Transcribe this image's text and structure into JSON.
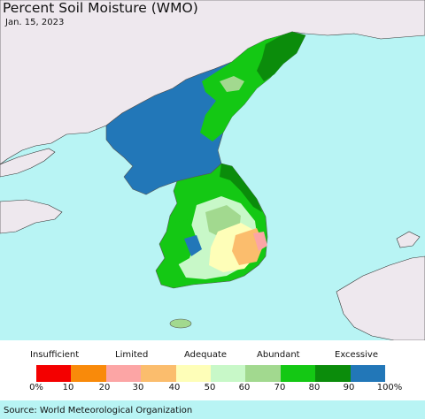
{
  "title": "Percent Soil Moisture (WMO)",
  "date": "Jan. 15, 2023",
  "source": "Source: World Meteorological Organization",
  "legend": {
    "categories": [
      "Insufficient",
      "Limited",
      "Adequate",
      "Abundant",
      "Excessive"
    ],
    "ticks": [
      "0%",
      "10",
      "20",
      "30",
      "40",
      "50",
      "60",
      "70",
      "80",
      "90",
      "100%"
    ],
    "colors": [
      "#f40000",
      "#f98a0a",
      "#fca5a5",
      "#fbbd6d",
      "#fefeb8",
      "#c8f8c8",
      "#a2d98f",
      "#14c814",
      "#0b8c0b",
      "#2277b8"
    ]
  },
  "map": {
    "ocean_color": "#b8f4f4",
    "land_outside_color": "#eee8ee",
    "north_korea_dominant": "#2277b8"
  }
}
